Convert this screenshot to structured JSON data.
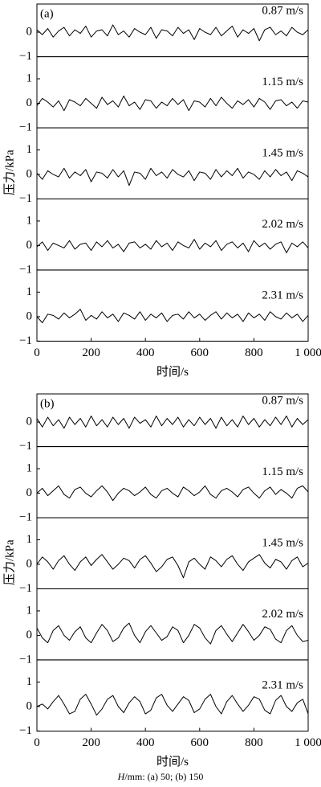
{
  "chart_data": [
    {
      "type": "line",
      "panel_label": "(a)",
      "xlabel": "时间/s",
      "ylabel": "压力/kPa",
      "color": "#000000",
      "xlim": [
        0,
        1000
      ],
      "xticks": [
        0,
        200,
        400,
        600,
        800,
        {
          "value": 1000,
          "label": "1 000"
        }
      ],
      "x": [
        0,
        20,
        40,
        60,
        80,
        100,
        120,
        140,
        160,
        180,
        200,
        220,
        240,
        260,
        280,
        300,
        320,
        340,
        360,
        380,
        400,
        420,
        440,
        460,
        480,
        500,
        520,
        540,
        560,
        580,
        600,
        620,
        640,
        660,
        680,
        700,
        720,
        740,
        760,
        780,
        800,
        820,
        840,
        860,
        880,
        900,
        920,
        940,
        960,
        980,
        1000
      ],
      "subplots": [
        {
          "label": "0.87 m/s",
          "ylim": [
            -1,
            1.15
          ],
          "yticks": [
            0,
            {
              "value": -1,
              "label": "−1"
            }
          ],
          "values": [
            0.1,
            -0.1,
            0.15,
            -0.2,
            0.05,
            0.2,
            -0.15,
            0.1,
            -0.05,
            0.25,
            -0.2,
            0.05,
            0.1,
            -0.15,
            0.3,
            -0.1,
            0.05,
            -0.2,
            0.15,
            0.0,
            -0.1,
            0.2,
            -0.25,
            0.1,
            0.05,
            -0.15,
            0.2,
            -0.05,
            0.1,
            -0.3,
            0.15,
            0.0,
            -0.1,
            0.2,
            -0.15,
            0.05,
            0.25,
            -0.2,
            0.1,
            -0.05,
            0.15,
            -0.35,
            0.1,
            0.2,
            -0.1,
            0.05,
            -0.15,
            0.2,
            0.0,
            -0.1,
            0.1
          ]
        },
        {
          "label": "1.15 m/s",
          "ylim": [
            -1,
            1.9
          ],
          "yticks": [
            1,
            0,
            {
              "value": -1,
              "label": "−1"
            }
          ],
          "values": [
            -0.1,
            0.2,
            0.05,
            -0.15,
            0.1,
            -0.3,
            0.15,
            0.05,
            -0.1,
            0.2,
            0.0,
            -0.2,
            0.25,
            -0.05,
            0.1,
            -0.15,
            0.3,
            -0.1,
            0.05,
            -0.25,
            0.15,
            0.1,
            -0.2,
            0.05,
            -0.1,
            0.2,
            -0.05,
            0.15,
            -0.3,
            0.1,
            0.05,
            -0.15,
            0.2,
            -0.1,
            0.25,
            0.0,
            -0.2,
            0.1,
            -0.05,
            0.15,
            -0.15,
            0.2,
            0.05,
            -0.25,
            0.1,
            0.15,
            -0.1,
            0.05,
            -0.2,
            0.1,
            0.05
          ]
        },
        {
          "label": "1.45 m/s",
          "ylim": [
            -1,
            1.9
          ],
          "yticks": [
            1,
            0,
            {
              "value": -1,
              "label": "−1"
            }
          ],
          "values": [
            0.05,
            -0.2,
            0.15,
            0.0,
            -0.1,
            0.25,
            -0.15,
            0.1,
            -0.05,
            0.2,
            -0.3,
            0.1,
            0.05,
            -0.15,
            0.2,
            -0.1,
            0.15,
            -0.45,
            0.1,
            0.05,
            -0.2,
            0.25,
            -0.05,
            0.1,
            -0.15,
            0.2,
            0.0,
            -0.1,
            0.15,
            -0.25,
            0.1,
            0.05,
            -0.2,
            0.2,
            -0.1,
            0.15,
            -0.05,
            0.25,
            -0.15,
            0.1,
            0.0,
            -0.2,
            0.15,
            -0.1,
            0.2,
            -0.05,
            0.1,
            -0.25,
            0.15,
            0.05,
            -0.1
          ]
        },
        {
          "label": "2.02 m/s",
          "ylim": [
            -1,
            1.9
          ],
          "yticks": [
            1,
            0,
            {
              "value": -1,
              "label": "−1"
            }
          ],
          "values": [
            -0.05,
            0.15,
            -0.2,
            0.1,
            0.0,
            -0.1,
            0.2,
            -0.15,
            0.05,
            0.1,
            -0.2,
            0.15,
            -0.05,
            0.2,
            -0.1,
            0.05,
            -0.25,
            0.1,
            0.15,
            -0.1,
            0.05,
            -0.15,
            0.2,
            -0.05,
            0.1,
            -0.2,
            0.15,
            0.0,
            -0.1,
            0.25,
            -0.15,
            0.1,
            -0.05,
            0.2,
            -0.2,
            0.05,
            0.15,
            -0.1,
            0.1,
            -0.25,
            0.2,
            -0.05,
            0.1,
            -0.15,
            0.05,
            0.15,
            -0.3,
            0.1,
            -0.05,
            0.15,
            -0.1
          ]
        },
        {
          "label": "2.31 m/s",
          "ylim": [
            -1,
            1.9
          ],
          "yticks": [
            1,
            0,
            {
              "value": -1,
              "label": "−1"
            }
          ],
          "values": [
            0.0,
            -0.25,
            0.1,
            0.05,
            -0.1,
            0.15,
            -0.05,
            0.1,
            0.3,
            -0.15,
            0.05,
            -0.1,
            0.2,
            -0.05,
            0.1,
            -0.2,
            0.15,
            0.05,
            -0.1,
            0.2,
            -0.15,
            0.1,
            -0.05,
            0.15,
            -0.2,
            0.05,
            0.1,
            -0.1,
            0.2,
            -0.05,
            0.1,
            -0.15,
            0.05,
            0.2,
            -0.1,
            0.15,
            -0.05,
            0.1,
            -0.2,
            0.15,
            -0.05,
            0.1,
            -0.15,
            0.2,
            0.0,
            -0.1,
            0.15,
            -0.05,
            0.1,
            -0.2,
            0.05
          ]
        }
      ]
    },
    {
      "type": "line",
      "panel_label": "(b)",
      "xlabel": "时间/s",
      "ylabel": "压力/kPa",
      "color": "#000000",
      "xlim": [
        0,
        1000
      ],
      "xticks": [
        0,
        200,
        400,
        600,
        800,
        {
          "value": 1000,
          "label": "1 000"
        }
      ],
      "x": [
        0,
        20,
        40,
        60,
        80,
        100,
        120,
        140,
        160,
        180,
        200,
        220,
        240,
        260,
        280,
        300,
        320,
        340,
        360,
        380,
        400,
        420,
        440,
        460,
        480,
        500,
        520,
        540,
        560,
        580,
        600,
        620,
        640,
        660,
        680,
        700,
        720,
        740,
        760,
        780,
        800,
        820,
        840,
        860,
        880,
        900,
        920,
        940,
        960,
        980,
        1000
      ],
      "subplots": [
        {
          "label": "0.87 m/s",
          "ylim": [
            -1,
            1.15
          ],
          "yticks": [
            0,
            {
              "value": -1,
              "label": "−1"
            }
          ],
          "values": [
            0.15,
            -0.2,
            0.2,
            -0.15,
            0.1,
            -0.25,
            0.2,
            -0.1,
            0.15,
            -0.2,
            0.25,
            -0.15,
            0.1,
            -0.2,
            0.2,
            -0.1,
            0.15,
            -0.25,
            0.2,
            -0.05,
            0.1,
            -0.2,
            0.25,
            -0.15,
            0.15,
            -0.1,
            0.2,
            -0.2,
            0.1,
            -0.15,
            0.2,
            -0.1,
            0.15,
            -0.25,
            0.2,
            -0.15,
            0.1,
            -0.2,
            0.25,
            -0.1,
            0.15,
            -0.2,
            0.1,
            -0.15,
            0.2,
            -0.1,
            0.25,
            -0.2,
            0.15,
            -0.1,
            0.1
          ]
        },
        {
          "label": "1.15 m/s",
          "ylim": [
            -1,
            1.9
          ],
          "yticks": [
            1,
            0,
            {
              "value": -1,
              "label": "−1"
            }
          ],
          "values": [
            0.0,
            0.2,
            -0.1,
            0.1,
            0.3,
            -0.05,
            -0.2,
            0.15,
            0.25,
            0.0,
            -0.15,
            0.1,
            0.3,
            0.05,
            -0.3,
            0.0,
            0.2,
            0.1,
            -0.1,
            0.05,
            0.25,
            -0.05,
            -0.2,
            0.1,
            0.2,
            0.0,
            -0.15,
            0.25,
            0.1,
            -0.1,
            0.05,
            0.3,
            -0.05,
            -0.2,
            0.1,
            0.2,
            0.05,
            -0.15,
            0.15,
            0.25,
            0.0,
            -0.2,
            0.1,
            0.25,
            -0.05,
            0.15,
            0.0,
            -0.2,
            0.2,
            0.3,
            0.05
          ]
        },
        {
          "label": "1.45 m/s",
          "ylim": [
            -1,
            1.9
          ],
          "yticks": [
            1,
            0,
            {
              "value": -1,
              "label": "−1"
            }
          ],
          "values": [
            0.0,
            0.3,
            0.1,
            -0.2,
            0.15,
            0.35,
            0.0,
            -0.25,
            0.1,
            0.3,
            -0.05,
            0.2,
            0.4,
            0.1,
            -0.2,
            0.0,
            0.25,
            0.15,
            -0.15,
            0.2,
            0.35,
            0.05,
            -0.3,
            -0.1,
            0.2,
            0.3,
            -0.05,
            -0.55,
            0.1,
            0.25,
            0.0,
            -0.2,
            0.3,
            0.15,
            -0.1,
            0.2,
            0.35,
            0.0,
            -0.25,
            0.1,
            0.25,
            0.4,
            0.05,
            -0.15,
            0.2,
            0.1,
            -0.2,
            0.15,
            0.3,
            -0.1,
            0.05
          ]
        },
        {
          "label": "2.02 m/s",
          "ylim": [
            -1,
            1.9
          ],
          "yticks": [
            1,
            0,
            {
              "value": -1,
              "label": "−1"
            }
          ],
          "values": [
            0.3,
            -0.1,
            -0.3,
            0.2,
            0.4,
            0.0,
            -0.2,
            0.15,
            0.35,
            -0.1,
            -0.3,
            0.1,
            0.45,
            0.2,
            -0.25,
            -0.1,
            0.3,
            0.5,
            0.0,
            -0.3,
            0.15,
            0.4,
            0.1,
            -0.2,
            -0.05,
            0.35,
            0.2,
            -0.3,
            0.0,
            0.45,
            0.3,
            -0.1,
            -0.35,
            0.2,
            0.4,
            0.05,
            -0.25,
            0.1,
            0.45,
            0.15,
            -0.2,
            0.0,
            0.35,
            0.25,
            -0.15,
            -0.3,
            0.2,
            0.4,
            0.0,
            -0.25,
            -0.2
          ]
        },
        {
          "label": "2.31 m/s",
          "ylim": [
            -1,
            1.9
          ],
          "yticks": [
            1,
            0,
            {
              "value": -1,
              "label": "−1"
            }
          ],
          "values": [
            0.0,
            0.1,
            -0.1,
            0.2,
            0.45,
            0.1,
            -0.3,
            -0.2,
            0.3,
            0.5,
            0.1,
            -0.35,
            -0.1,
            0.3,
            0.45,
            0.0,
            -0.25,
            0.15,
            0.4,
            0.2,
            -0.3,
            -0.15,
            0.35,
            0.5,
            0.05,
            -0.2,
            0.1,
            0.4,
            0.25,
            -0.25,
            -0.1,
            0.3,
            0.5,
            0.0,
            -0.3,
            0.2,
            0.45,
            0.1,
            -0.2,
            0.05,
            0.4,
            0.3,
            -0.15,
            -0.3,
            0.25,
            0.45,
            0.0,
            -0.2,
            0.15,
            0.3,
            -0.3
          ]
        }
      ]
    }
  ],
  "caption_var": "H",
  "caption": "/mm: (a) 50; (b) 150"
}
